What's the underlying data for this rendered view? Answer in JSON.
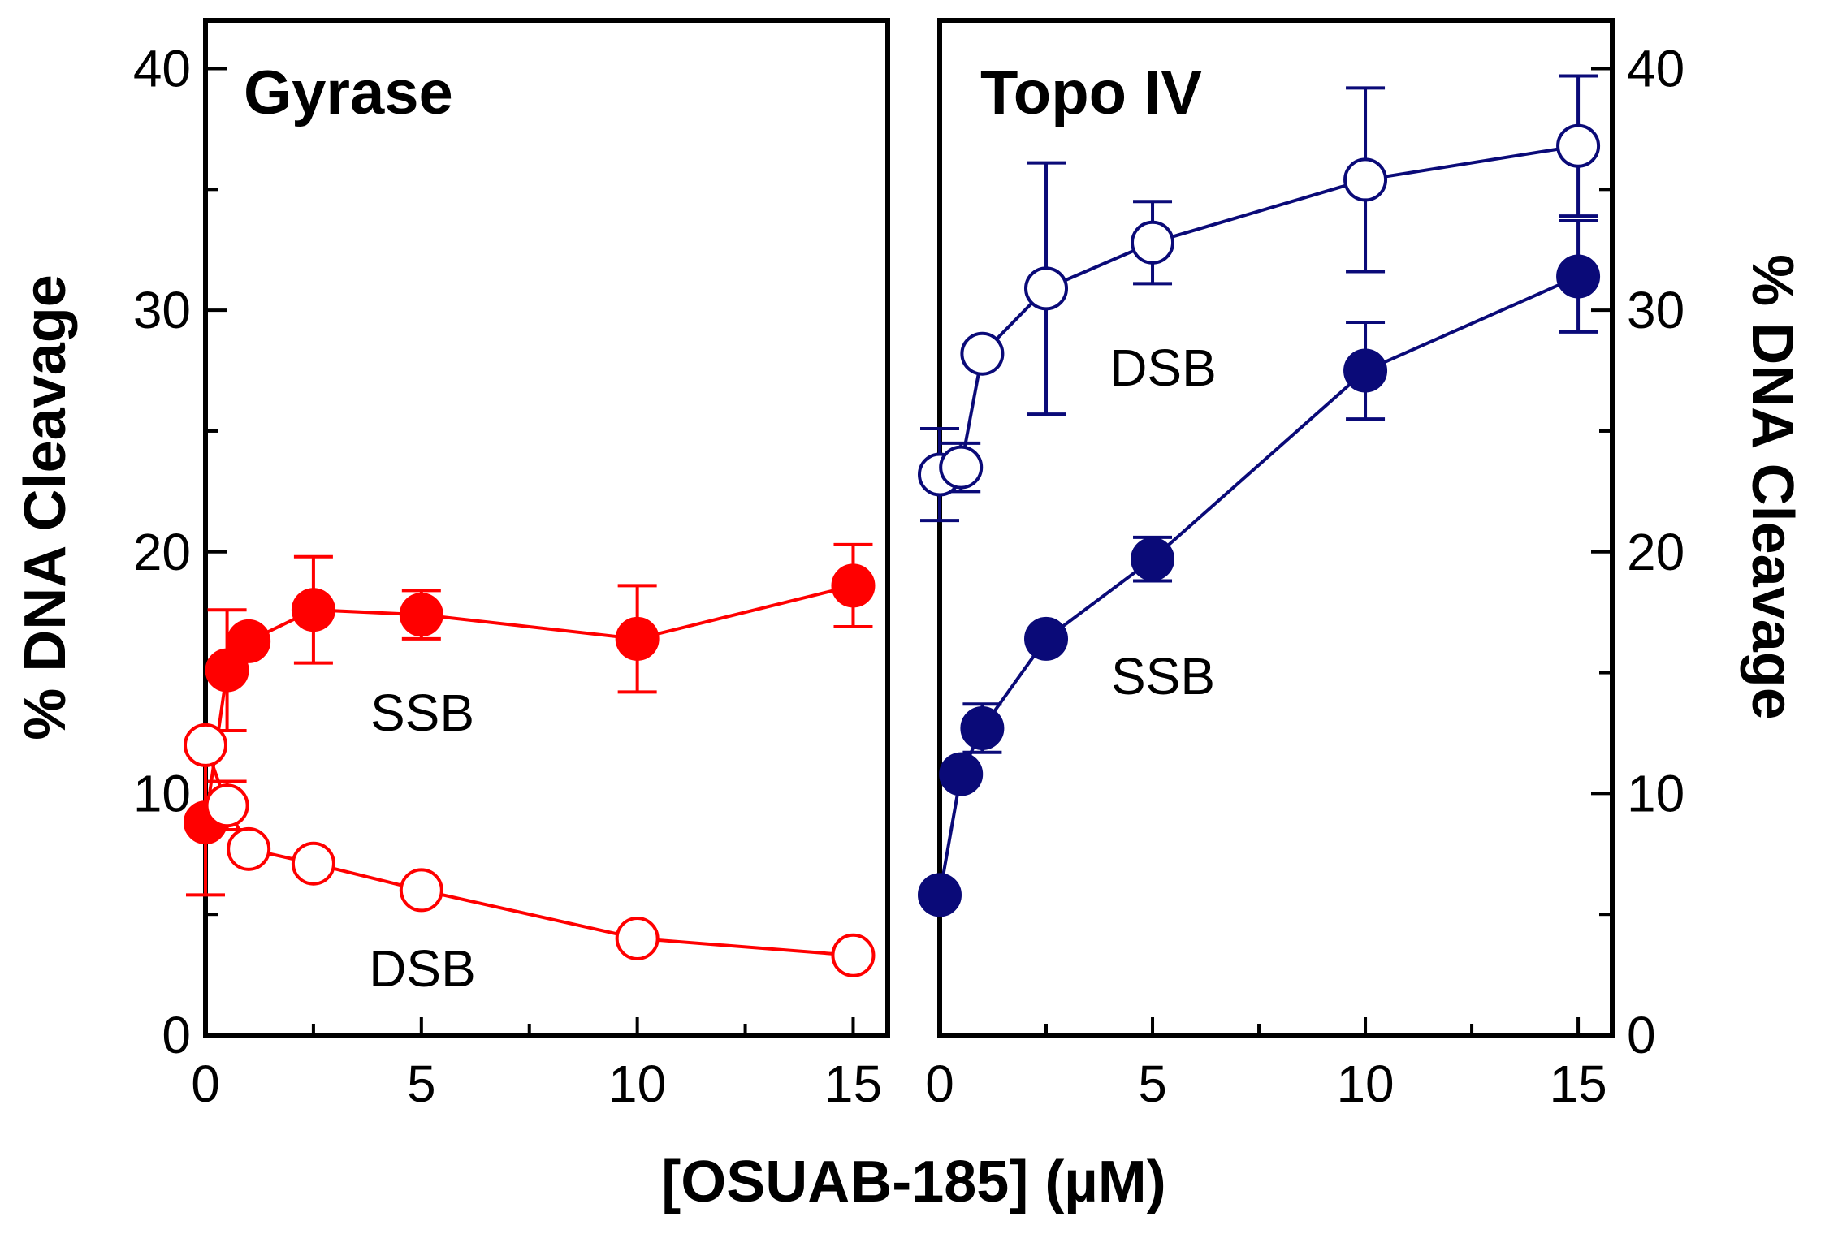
{
  "figure": {
    "xlabel": "[OSUAB-185] (µM)",
    "left_ylabel": "% DNA Cleavage",
    "right_ylabel": "% DNA Cleavage",
    "colors": {
      "gyrase": "#ff0000",
      "topo": "#0a0a78",
      "axis": "#000000"
    }
  },
  "chart_data": [
    {
      "type": "line",
      "title": "Gyrase",
      "xlabel": "[OSUAB-185] (µM)",
      "ylabel": "% DNA Cleavage",
      "xlim": [
        0,
        15.8
      ],
      "ylim": [
        0,
        42
      ],
      "x_ticks": [
        0,
        5,
        10,
        15
      ],
      "y_ticks": [
        0,
        10,
        20,
        30,
        40
      ],
      "y_axis_side": "left",
      "color": "#ff0000",
      "series": [
        {
          "name": "SSB",
          "marker": "filled-circle",
          "x": [
            0,
            0.5,
            1,
            2.5,
            5,
            10,
            15
          ],
          "y": [
            8.8,
            15.1,
            16.3,
            17.6,
            17.4,
            16.4,
            18.6
          ],
          "err": [
            3.0,
            2.5,
            0,
            2.2,
            1.0,
            2.2,
            1.7
          ],
          "label": "SSB"
        },
        {
          "name": "DSB",
          "marker": "open-circle",
          "x": [
            0,
            0.5,
            1,
            2.5,
            5,
            10,
            15
          ],
          "y": [
            12.0,
            9.5,
            7.7,
            7.1,
            6.0,
            4.0,
            3.3
          ],
          "err": [
            0,
            1.0,
            0,
            0,
            0,
            0,
            0
          ],
          "label": "DSB"
        }
      ]
    },
    {
      "type": "line",
      "title": "Topo IV",
      "xlabel": "[OSUAB-185] (µM)",
      "ylabel": "% DNA Cleavage",
      "xlim": [
        0,
        15.8
      ],
      "ylim": [
        0,
        42
      ],
      "x_ticks": [
        0,
        5,
        10,
        15
      ],
      "y_ticks": [
        0,
        10,
        20,
        30,
        40
      ],
      "y_axis_side": "right",
      "color": "#0a0a78",
      "series": [
        {
          "name": "SSB",
          "marker": "filled-circle",
          "x": [
            0,
            0.5,
            1,
            2.5,
            5,
            10,
            15
          ],
          "y": [
            5.8,
            10.8,
            12.7,
            16.4,
            19.7,
            27.5,
            31.4
          ],
          "err": [
            0,
            0,
            1.0,
            0,
            0.9,
            2.0,
            2.3
          ],
          "label": "SSB"
        },
        {
          "name": "DSB",
          "marker": "open-circle",
          "x": [
            0,
            0.5,
            1,
            2.5,
            5,
            10,
            15
          ],
          "y": [
            23.2,
            23.5,
            28.2,
            30.9,
            32.8,
            35.4,
            36.8
          ],
          "err": [
            1.9,
            1.0,
            0,
            5.2,
            1.7,
            3.8,
            2.9
          ],
          "label": "DSB"
        }
      ]
    }
  ]
}
